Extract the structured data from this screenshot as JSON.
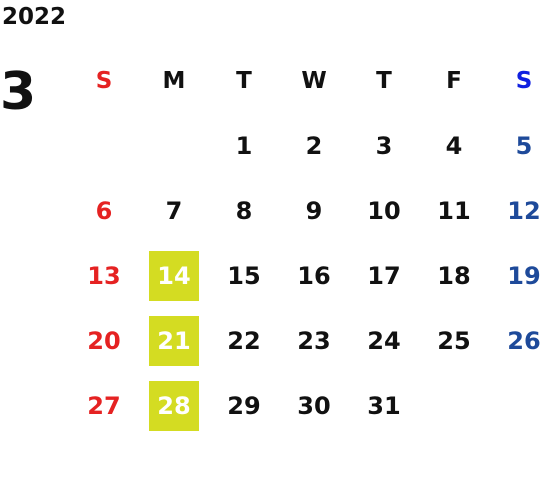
{
  "calendar": {
    "year": "2022",
    "month": "3",
    "weekdays": [
      "S",
      "M",
      "T",
      "W",
      "T",
      "F",
      "S"
    ],
    "weeks": [
      [
        "",
        "",
        "1",
        "2",
        "3",
        "4",
        "5"
      ],
      [
        "6",
        "7",
        "8",
        "9",
        "10",
        "11",
        "12"
      ],
      [
        "13",
        "14",
        "15",
        "16",
        "17",
        "18",
        "19"
      ],
      [
        "20",
        "21",
        "22",
        "23",
        "24",
        "25",
        "26"
      ],
      [
        "27",
        "28",
        "29",
        "30",
        "31",
        "",
        ""
      ]
    ],
    "highlighted_days": [
      "14",
      "21",
      "28"
    ]
  },
  "colors": {
    "sunday": "#e52222",
    "saturday_header": "#1020e0",
    "saturday": "#1e4a9a",
    "highlight": "#d4dc22",
    "text": "#111111"
  }
}
